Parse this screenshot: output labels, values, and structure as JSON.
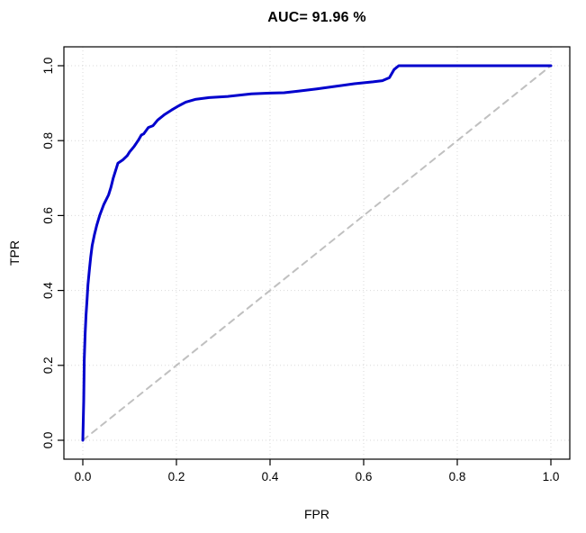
{
  "chart_data": {
    "type": "line",
    "title": "AUC= 91.96 %",
    "xlabel": "FPR",
    "ylabel": "TPR",
    "xlim": [
      0,
      1
    ],
    "ylim": [
      0,
      1
    ],
    "x_ticks": [
      0.0,
      0.2,
      0.4,
      0.6,
      0.8,
      1.0
    ],
    "y_ticks": [
      0.0,
      0.2,
      0.4,
      0.6,
      0.8,
      1.0
    ],
    "grid": true,
    "grid_color": "#d9d9d9",
    "legend": "none",
    "series": [
      {
        "id": "chance-diagonal-line",
        "name": "Chance diagonal",
        "color": "#c0c0c0",
        "width": 2,
        "dash": "7,6",
        "points": [
          [
            0,
            0
          ],
          [
            1,
            1
          ]
        ]
      },
      {
        "id": "roc-curve-line",
        "name": "ROC curve",
        "color": "#0000cd",
        "width": 3,
        "dash": null,
        "points": [
          [
            0.0,
            0.0
          ],
          [
            0.002,
            0.105
          ],
          [
            0.003,
            0.215
          ],
          [
            0.005,
            0.285
          ],
          [
            0.007,
            0.335
          ],
          [
            0.009,
            0.375
          ],
          [
            0.011,
            0.415
          ],
          [
            0.014,
            0.455
          ],
          [
            0.017,
            0.49
          ],
          [
            0.02,
            0.52
          ],
          [
            0.025,
            0.55
          ],
          [
            0.03,
            0.575
          ],
          [
            0.036,
            0.6
          ],
          [
            0.045,
            0.63
          ],
          [
            0.055,
            0.655
          ],
          [
            0.06,
            0.675
          ],
          [
            0.065,
            0.7
          ],
          [
            0.07,
            0.72
          ],
          [
            0.075,
            0.74
          ],
          [
            0.085,
            0.748
          ],
          [
            0.095,
            0.76
          ],
          [
            0.1,
            0.77
          ],
          [
            0.11,
            0.785
          ],
          [
            0.118,
            0.8
          ],
          [
            0.125,
            0.815
          ],
          [
            0.13,
            0.818
          ],
          [
            0.14,
            0.835
          ],
          [
            0.15,
            0.84
          ],
          [
            0.16,
            0.855
          ],
          [
            0.175,
            0.87
          ],
          [
            0.19,
            0.882
          ],
          [
            0.205,
            0.893
          ],
          [
            0.22,
            0.903
          ],
          [
            0.24,
            0.91
          ],
          [
            0.27,
            0.915
          ],
          [
            0.31,
            0.918
          ],
          [
            0.36,
            0.925
          ],
          [
            0.4,
            0.927
          ],
          [
            0.43,
            0.928
          ],
          [
            0.46,
            0.932
          ],
          [
            0.5,
            0.938
          ],
          [
            0.54,
            0.945
          ],
          [
            0.58,
            0.952
          ],
          [
            0.62,
            0.957
          ],
          [
            0.64,
            0.96
          ],
          [
            0.655,
            0.968
          ],
          [
            0.665,
            0.99
          ],
          [
            0.675,
            1.0
          ],
          [
            1.0,
            1.0
          ]
        ]
      }
    ]
  }
}
